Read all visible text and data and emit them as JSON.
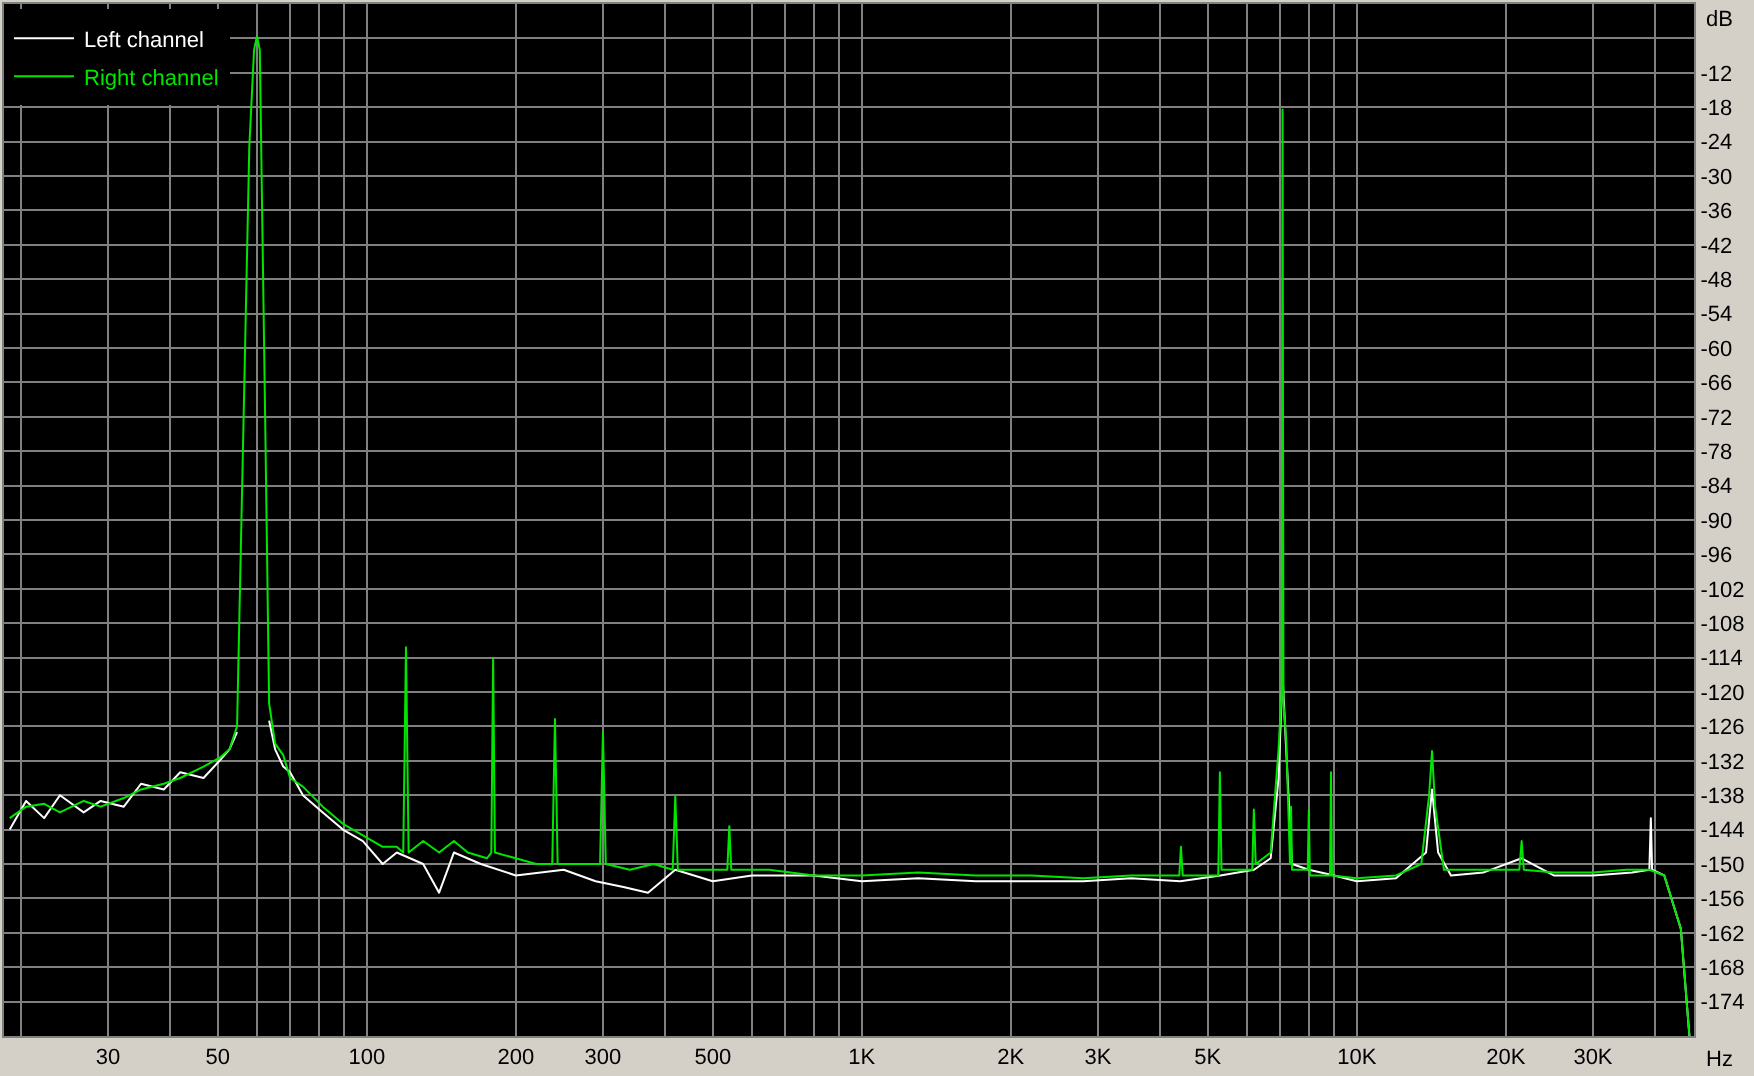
{
  "chart_data": {
    "type": "line",
    "xlabel": "Hz",
    "ylabel": "dB",
    "log": "x",
    "grid": true,
    "legend": "top left",
    "xlim": [
      18.5,
      48000
    ],
    "ylim": [
      -180,
      0
    ],
    "xticks": [
      {
        "value": 20,
        "label": null
      },
      30,
      {
        "value": 40,
        "label": null
      },
      50,
      {
        "value": 60,
        "label": null
      },
      {
        "value": 70,
        "label": null
      },
      {
        "value": 80,
        "label": null
      },
      {
        "value": 90,
        "label": null
      },
      100,
      200,
      300,
      {
        "value": 400,
        "label": null
      },
      500,
      {
        "value": 600,
        "label": null
      },
      {
        "value": 700,
        "label": null
      },
      {
        "value": 800,
        "label": null
      },
      {
        "value": 900,
        "label": null
      },
      {
        "value": 1000,
        "label": "1K"
      },
      {
        "value": 2000,
        "label": "2K"
      },
      {
        "value": 3000,
        "label": "3K"
      },
      {
        "value": 4000,
        "label": null
      },
      {
        "value": 5000,
        "label": "5K"
      },
      {
        "value": 6000,
        "label": null
      },
      {
        "value": 7000,
        "label": null
      },
      {
        "value": 8000,
        "label": null
      },
      {
        "value": 9000,
        "label": null
      },
      {
        "value": 10000,
        "label": "10K"
      },
      {
        "value": 20000,
        "label": "20K"
      },
      {
        "value": 30000,
        "label": "30K"
      },
      {
        "value": 40000,
        "label": null
      }
    ],
    "yticks": [
      {
        "value": -6,
        "label": null
      },
      -12,
      -18,
      -24,
      -30,
      -36,
      -42,
      -48,
      -54,
      -60,
      -66,
      -72,
      -78,
      -84,
      -90,
      -96,
      -102,
      -108,
      -114,
      -120,
      -126,
      -132,
      -138,
      -144,
      -150,
      -156,
      -162,
      -168,
      -174
    ],
    "series": [
      {
        "name": "Left channel",
        "color": "#ffffff",
        "x": [
          19.0,
          20.5,
          22.3,
          24,
          26.8,
          29,
          32.3,
          35,
          38.9,
          42,
          46.8,
          50.4,
          52.8,
          54.7,
          56.3,
          57.9,
          59.2,
          60,
          60.8,
          61.2,
          62.4,
          63.5,
          65.3,
          67.8,
          70,
          74.3,
          81.5,
          89.5,
          98.2,
          107.7,
          115,
          130,
          140,
          150,
          170,
          200,
          250,
          290,
          330,
          370,
          420,
          500,
          600,
          800,
          1000,
          1300,
          1700,
          2200,
          2800,
          3500,
          4400,
          5300,
          6200,
          6700,
          6950,
          7079,
          7200,
          7400,
          8000,
          9000,
          10000,
          12000,
          13800,
          14190,
          14600,
          15500,
          18000,
          21530,
          25000,
          30000,
          36000,
          39000,
          39270,
          39500,
          41800,
          45150,
          46990
        ],
        "values": [
          -144,
          -139,
          -142,
          -138,
          -141,
          -139,
          -140,
          -136,
          -137,
          -134,
          -135,
          -132,
          -130,
          -127,
          null,
          null,
          null,
          null,
          null,
          null,
          null,
          -125,
          -130,
          -133,
          -134,
          -138,
          -141,
          -144,
          -146,
          -150,
          -148,
          -150,
          -155,
          -148,
          -150,
          -152,
          -151,
          -153,
          -154,
          -155,
          -151,
          -153,
          -152,
          -152,
          -153,
          -152.5,
          -153,
          -153,
          -153,
          -152.5,
          -153,
          -152,
          -151,
          -149,
          -135,
          -116.8,
          -130,
          -150,
          -151,
          -152,
          -153,
          -152.5,
          -148,
          -137,
          -148,
          -152,
          -151.5,
          -149,
          -152,
          -152,
          -151.5,
          -151,
          -142,
          -151,
          -152,
          -161.3,
          -180
        ]
      },
      {
        "name": "Right channel",
        "color": "#00e600",
        "x": [
          19.0,
          20.5,
          22.3,
          24,
          26.8,
          29,
          32.3,
          35,
          38.9,
          42,
          46.8,
          50.4,
          52.8,
          54.7,
          56.3,
          57.9,
          59.2,
          60,
          60.8,
          61.2,
          62.4,
          63.5,
          65.3,
          67.8,
          70,
          74.3,
          81.5,
          89.5,
          98.2,
          107.7,
          115,
          118.5,
          120,
          121.5,
          130,
          140,
          150,
          160,
          175,
          178.5,
          180,
          181.5,
          200,
          220,
          237,
          240,
          243,
          270,
          296,
          300,
          304,
          340,
          380,
          415,
          420,
          425,
          480,
          535,
          540,
          545,
          650,
          800,
          1000,
          1300,
          1700,
          2200,
          2800,
          3500,
          4380,
          4413,
          4450,
          5250,
          5290,
          5330,
          6150,
          6195,
          6250,
          6700,
          6950,
          7050,
          7079,
          7110,
          7200,
          7330,
          7366,
          7400,
          7960,
          8000,
          8040,
          8830,
          8870,
          8910,
          10000,
          12000,
          13500,
          14000,
          14190,
          14400,
          15000,
          18000,
          21300,
          21530,
          21750,
          25000,
          30000,
          35000,
          39000,
          41800,
          45150,
          46990
        ],
        "values": [
          -142,
          -140,
          -139.5,
          -141,
          -139,
          -140,
          -138.5,
          -137,
          -136,
          -135,
          -133,
          -131.5,
          -130,
          -126,
          -75,
          -25,
          -8,
          -5.6,
          -8,
          -25,
          -75,
          -122,
          -129,
          -131,
          -135,
          -136.5,
          -140,
          -143,
          -145,
          -147,
          -147,
          -148,
          -112.2,
          -148,
          -146,
          -148,
          -146,
          -148,
          -149,
          -148,
          -114.2,
          -148,
          -149,
          -150,
          -150,
          -124.7,
          -150,
          -150,
          -150,
          -127,
          -150,
          -151,
          -150,
          -151,
          -138.2,
          -151,
          -151,
          -151,
          -143.4,
          -151,
          -151,
          -152,
          -152,
          -151.5,
          -152,
          -152,
          -152.5,
          -152,
          -152,
          -147,
          -152,
          -152,
          -134,
          -151,
          -151,
          -140.5,
          -150,
          -148,
          -130,
          -120,
          -18.4,
          -122,
          -128,
          -150,
          -140,
          -151,
          -151,
          -140.6,
          -152,
          -152,
          -134,
          -152,
          -152.5,
          -152,
          -150,
          -138,
          -130.3,
          -140,
          -151,
          -151,
          -151,
          -146,
          -151,
          -151.5,
          -151.5,
          -151,
          -151,
          -152,
          -161.3,
          -180
        ]
      }
    ]
  }
}
